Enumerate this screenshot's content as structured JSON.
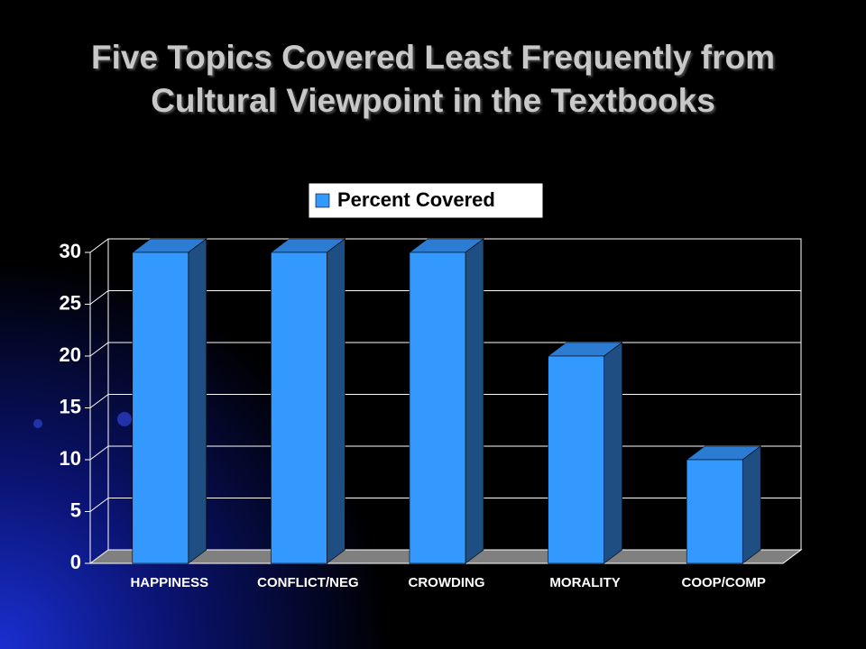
{
  "chart_data": {
    "type": "bar3d",
    "title": "Five Topics Covered Least Frequently from Cultural Viewpoint in the Textbooks",
    "categories": [
      "HAPPINESS",
      "CONFLICT/NEG",
      "CROWDING",
      "MORALITY",
      "COOP/COMP"
    ],
    "series": [
      {
        "name": "Percent Covered",
        "color": "#3399ff",
        "values": [
          30,
          30,
          30,
          20,
          10
        ]
      }
    ],
    "ylim": [
      0,
      30
    ],
    "yticks": [
      0,
      5,
      10,
      15,
      20,
      25,
      30
    ],
    "grid": true,
    "legend": "top"
  }
}
